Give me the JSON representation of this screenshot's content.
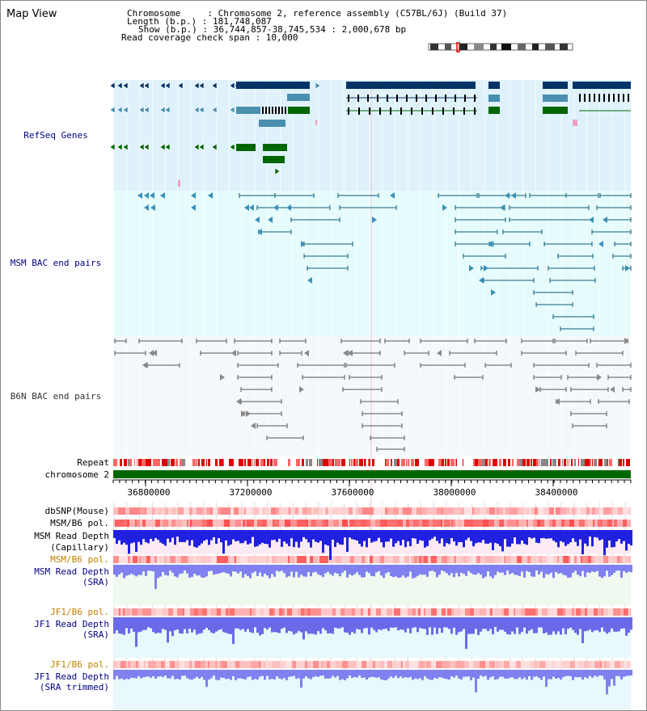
{
  "view_title": "Map View",
  "header": {
    "chromosome": "Chromosome     : Chromosome 2, reference assembly (C57BL/6J) (Build 37)",
    "length": "Length (b.p.) : 181,748,087",
    "show": "Show (b.p.) : 36,744,857-38,745,534 : 2,000,678 bp",
    "coverage": "Read coverage check span : 10,000"
  },
  "tracks": {
    "refseq": "RefSeq Genes",
    "msm_bac": "MSM BAC end pairs",
    "b6n_bac": "B6N BAC end pairs",
    "repeat": "Repeat",
    "chromosome": "chromosome 2",
    "dbsnp": "dbSNP(Mouse)",
    "msm_b6_pol_1": "MSM/B6 pol.",
    "msm_read_depth_cap_1": "MSM Read Depth",
    "msm_read_depth_cap_2": "(Capillary)",
    "msm_b6_pol_2": "MSM/B6 pol.",
    "msm_read_depth_sra_1": "MSM Read Depth",
    "msm_read_depth_sra_2": "(SRA)",
    "jf1_b6_pol_1": "JF1/B6 pol.",
    "jf1_read_depth_1": "JF1 Read Depth",
    "jf1_read_depth_2": "(SRA)",
    "jf1_b6_pol_2": "JF1/B6 pol.",
    "jf1_read_depth_t1": "JF1 Read Depth",
    "jf1_read_depth_t2": "(SRA trimmed)"
  },
  "axis_ticks": [
    "36800000",
    "37200000",
    "37600000",
    "38000000",
    "38400000"
  ],
  "colors": {
    "refseq_bg": "#dff2fb",
    "msm_bac_bg": "#e6fcfc",
    "b6n_bac_bg": "#f5f8fa",
    "navy": "#003366",
    "steel": "#4a8fb0",
    "green": "#006600",
    "chromosome_bar": "#006600",
    "depth_blue": "#3a3ae0",
    "depth_light": "#7c7cf0",
    "label_navy": "#000080",
    "label_gold": "#c08000"
  }
}
